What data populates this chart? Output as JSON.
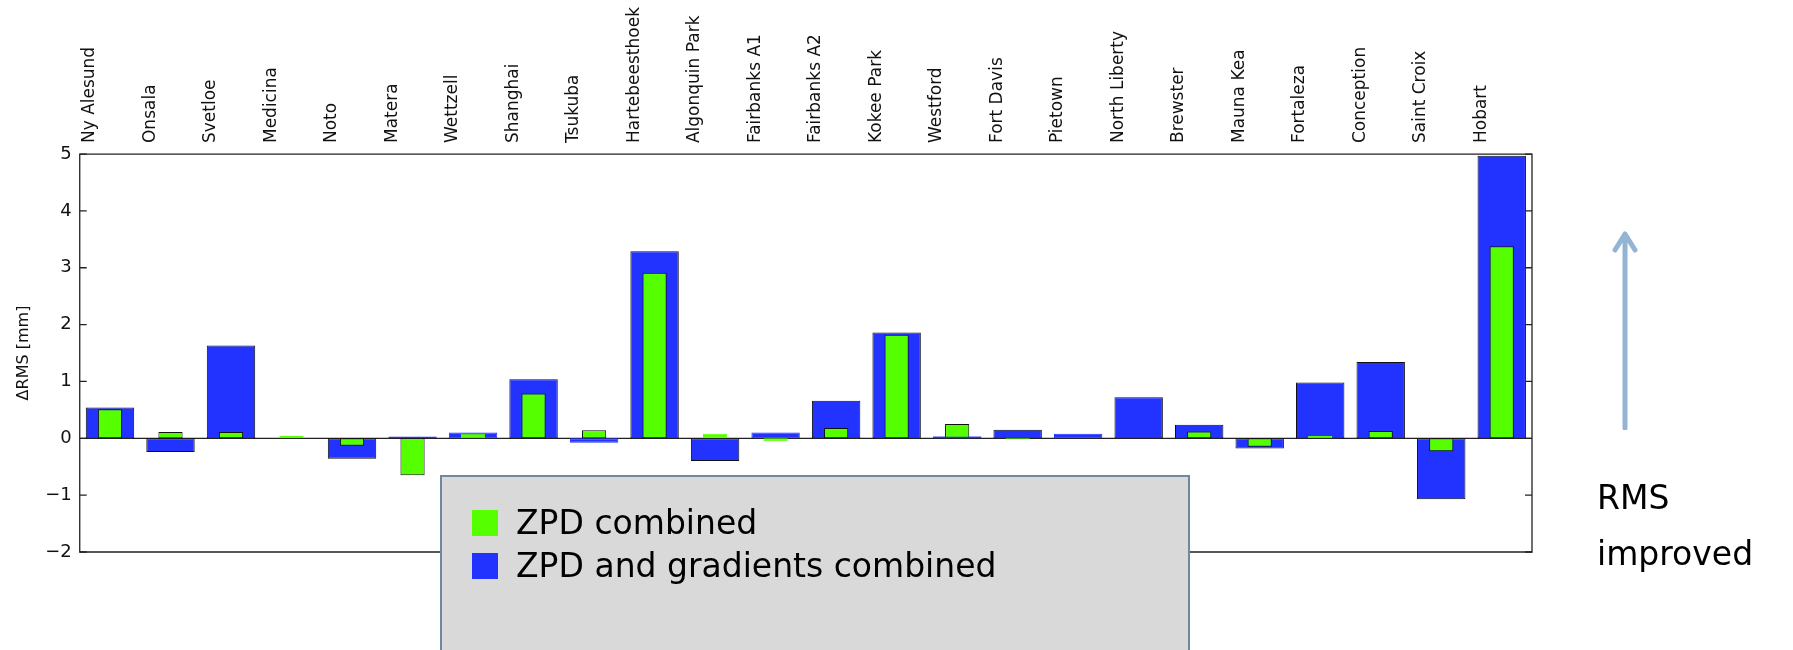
{
  "chart_data": {
    "type": "bar",
    "ylabel": "ΔRMS [mm]",
    "categories": [
      "Ny Alesund",
      "Onsala",
      "Svetloe",
      "Medicina",
      "Noto",
      "Matera",
      "Wettzell",
      "Shanghai",
      "Tsukuba",
      "Hartebeesthoek",
      "Algonquin Park",
      "Fairbanks A1",
      "Fairbanks A2",
      "Kokee Park",
      "Westford",
      "Fort Davis",
      "Pietown",
      "North Liberty",
      "Brewster",
      "Mauna Kea",
      "Fortaleza",
      "Conception",
      "Saint Croix",
      "Hobart"
    ],
    "series": [
      {
        "name": "ZPD and gradients combined",
        "color": "#2233ff",
        "values": [
          0.54,
          -0.24,
          1.63,
          null,
          -0.36,
          0.03,
          0.1,
          1.04,
          -0.08,
          3.29,
          -0.4,
          0.1,
          0.66,
          1.86,
          0.03,
          0.15,
          0.08,
          0.72,
          0.24,
          -0.18,
          0.98,
          1.34,
          -1.07,
          4.97
        ]
      },
      {
        "name": "ZPD combined",
        "color": "#55ff00",
        "values": [
          0.51,
          0.11,
          0.11,
          0.04,
          -0.13,
          -0.65,
          0.08,
          0.79,
          0.14,
          2.91,
          0.08,
          -0.05,
          0.18,
          1.82,
          0.25,
          -0.02,
          null,
          null,
          0.12,
          -0.15,
          0.04,
          0.13,
          -0.23,
          3.38
        ]
      }
    ],
    "ref_lines": [
      {
        "axis": "y",
        "value": 0,
        "color": "#222222"
      }
    ],
    "ylim": [
      -2,
      5
    ],
    "yticks": [
      -2,
      -1,
      0,
      1,
      2,
      3,
      4,
      5
    ],
    "grid": false,
    "legend": "bottom",
    "annotations": [
      "RMS improved"
    ]
  }
}
